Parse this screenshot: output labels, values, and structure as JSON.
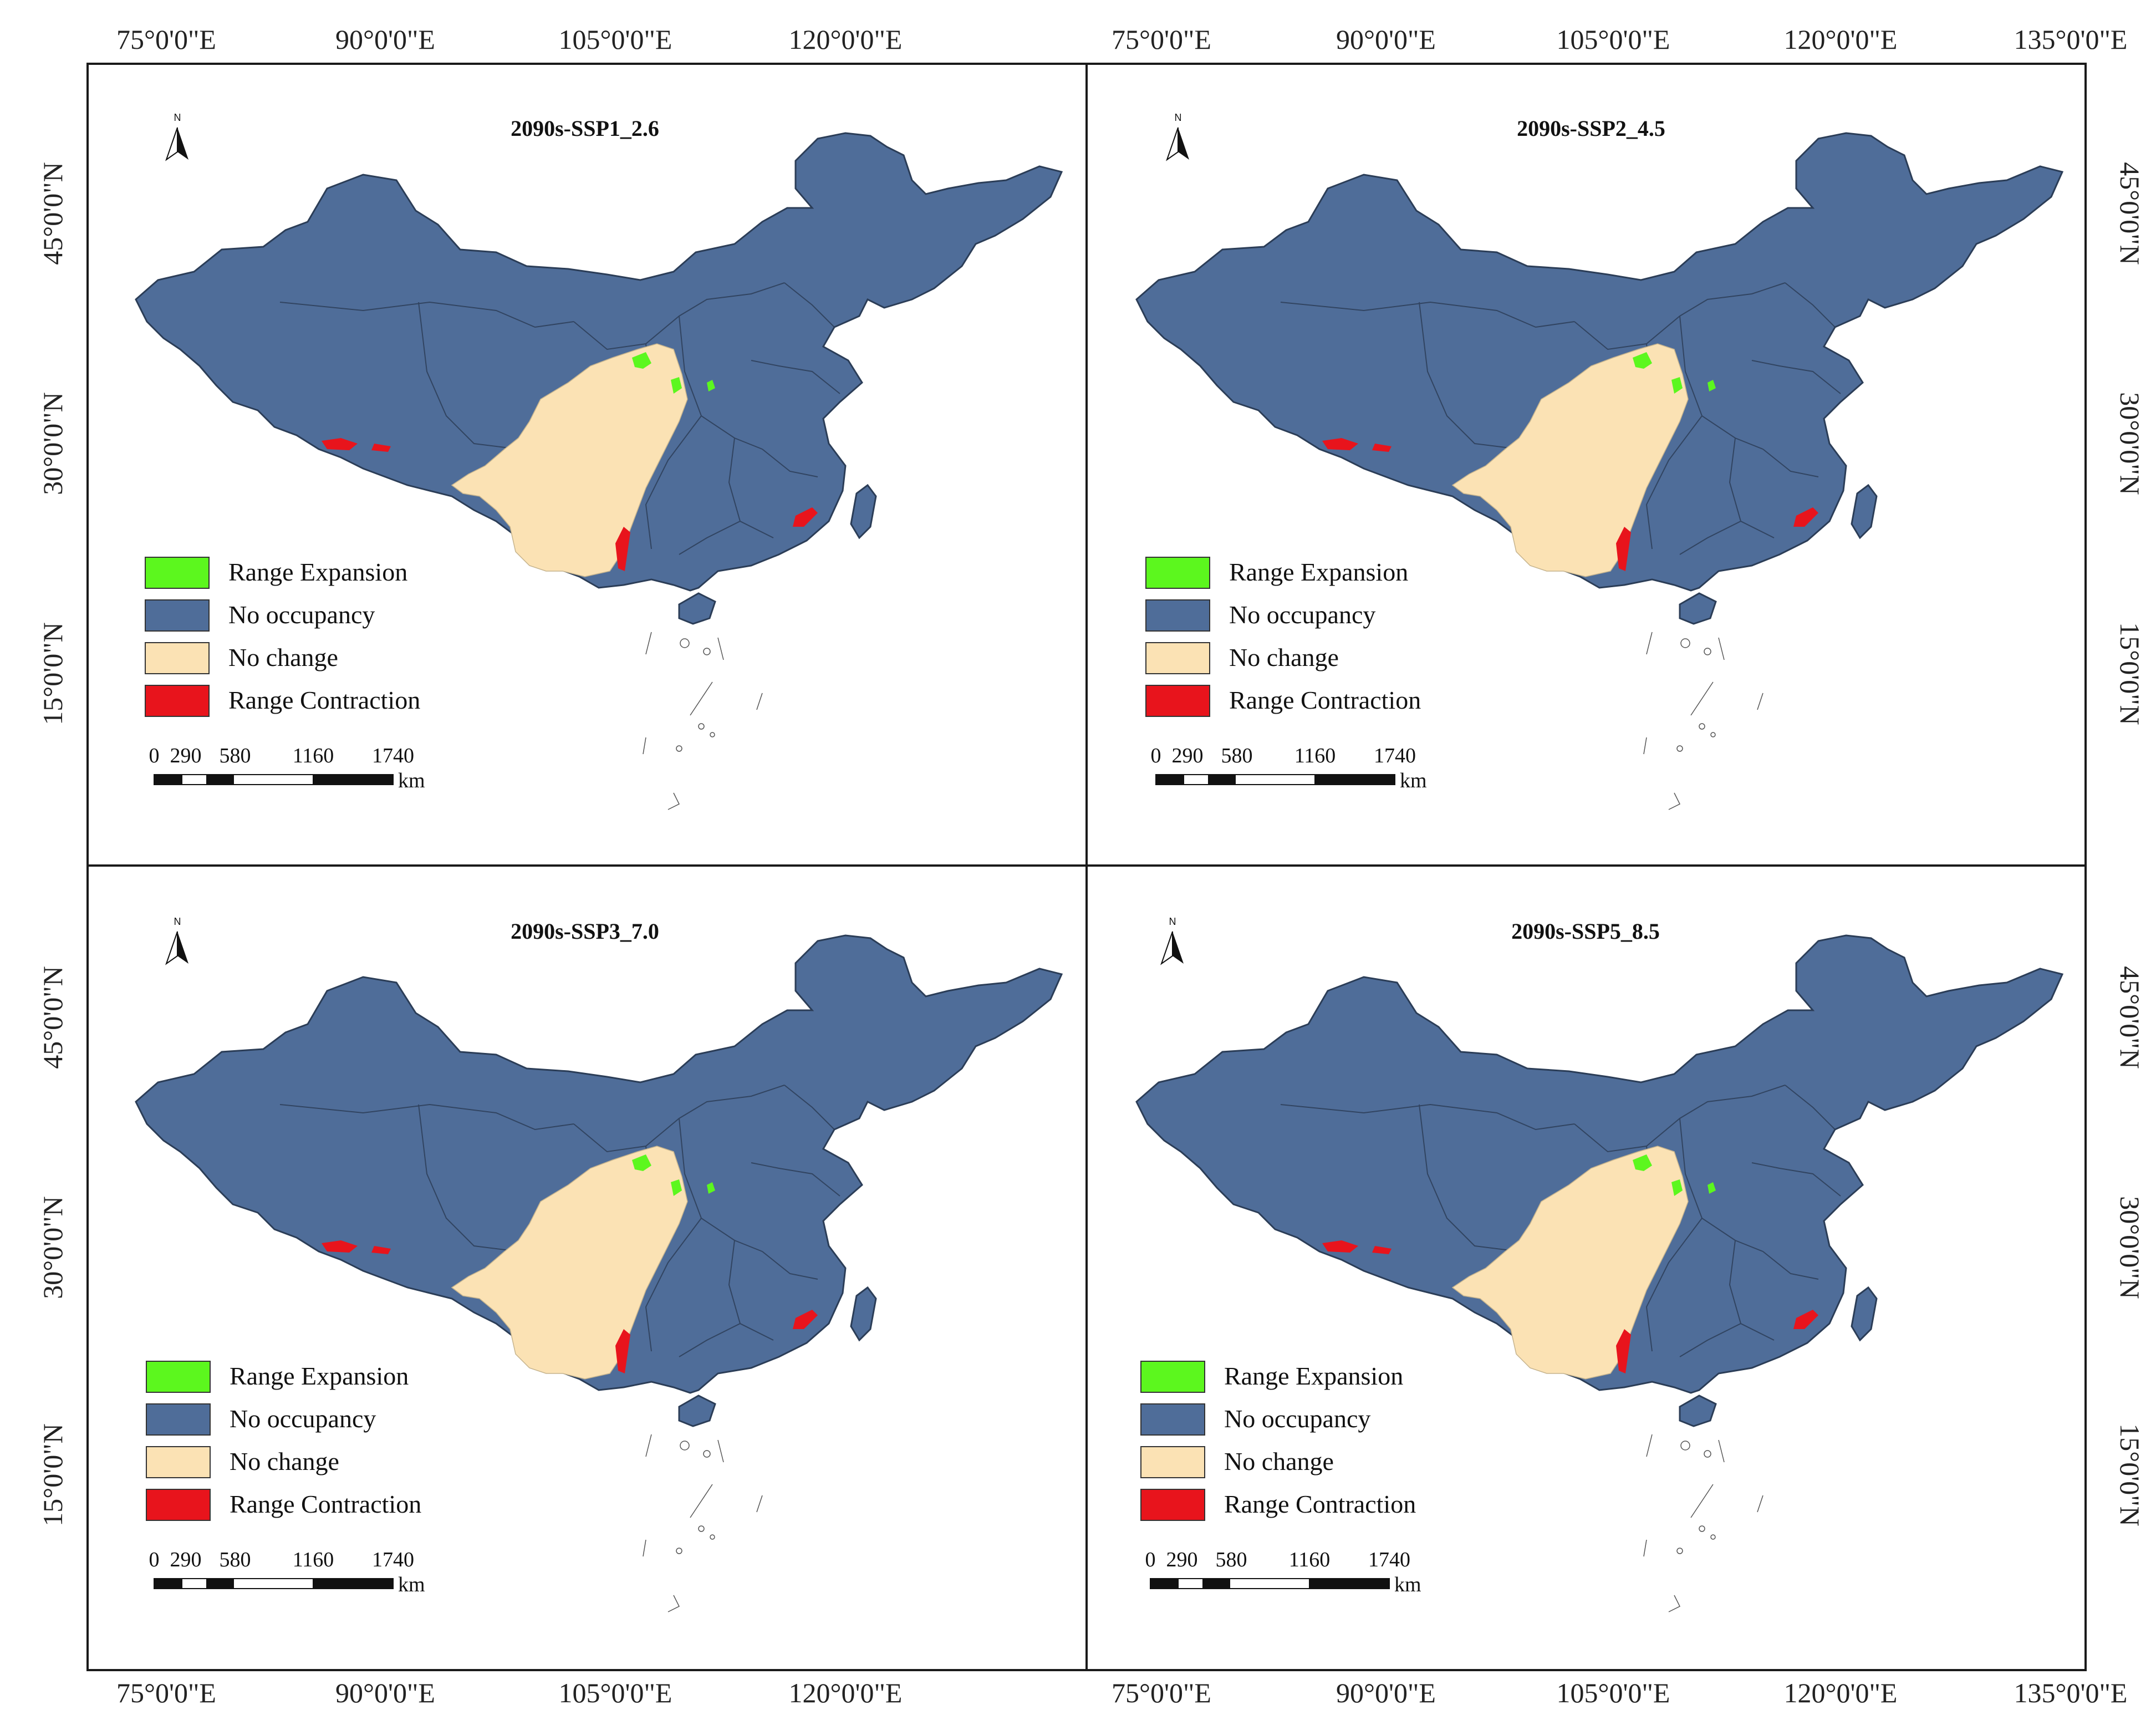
{
  "panels": [
    {
      "title": "2090s-SSP1_2.6"
    },
    {
      "title": "2090s-SSP2_4.5"
    },
    {
      "title": "2090s-SSP3_7.0"
    },
    {
      "title": "2090s-SSP5_8.5"
    }
  ],
  "legend": [
    {
      "label": "Range Expansion",
      "color": "#5cf71e"
    },
    {
      "label": "No occupancy",
      "color": "#4f6d99"
    },
    {
      "label": "No change",
      "color": "#fbe2b4"
    },
    {
      "label": "Range Contraction",
      "color": "#e8141c"
    }
  ],
  "north_label": "N",
  "scale_bar": {
    "ticks": [
      "0",
      "290",
      "580",
      "1160",
      "1740"
    ],
    "unit": "km"
  },
  "lon_labels_left": [
    "75°0'0\"E",
    "90°0'0\"E",
    "105°0'0\"E",
    "120°0'0\"E"
  ],
  "lon_labels_right": [
    "75°0'0\"E",
    "90°0'0\"E",
    "105°0'0\"E",
    "120°0'0\"E",
    "135°0'0\"E"
  ],
  "lat_labels": [
    "45°0'0\"N",
    "30°0'0\"N",
    "15°0'0\"N"
  ],
  "colors": {
    "frame": "#1a1a1a",
    "border": "#2b3d57",
    "islands": "#555555"
  }
}
